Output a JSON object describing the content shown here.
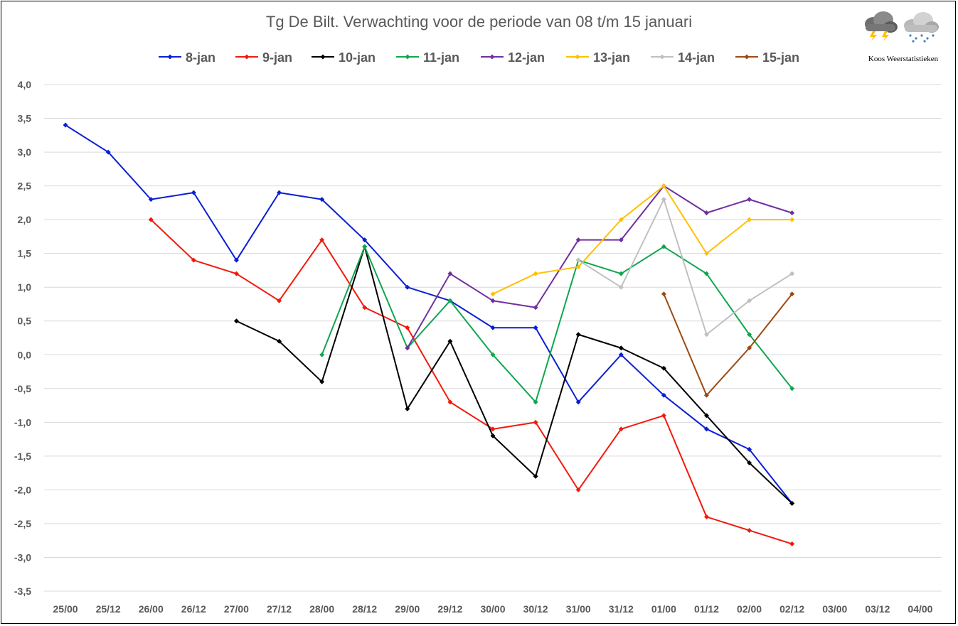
{
  "chart_data": {
    "type": "line",
    "title": "Tg De Bilt. Verwachting voor de periode van 08 t/m 15 januari",
    "xlabel": "",
    "ylabel": "",
    "ylim": [
      -3.5,
      4.0
    ],
    "y_ticks": [
      "4,0",
      "3,5",
      "3,0",
      "2,5",
      "2,0",
      "1,5",
      "1,0",
      "0,5",
      "0,0",
      "-0,5",
      "-1,0",
      "-1,5",
      "-2,0",
      "-2,5",
      "-3,0",
      "-3,5"
    ],
    "y_tick_values": [
      4.0,
      3.5,
      3.0,
      2.5,
      2.0,
      1.5,
      1.0,
      0.5,
      0.0,
      -0.5,
      -1.0,
      -1.5,
      -2.0,
      -2.5,
      -3.0,
      -3.5
    ],
    "categories": [
      "25/00",
      "25/12",
      "26/00",
      "26/12",
      "27/00",
      "27/12",
      "28/00",
      "28/12",
      "29/00",
      "29/12",
      "30/00",
      "30/12",
      "31/00",
      "31/12",
      "01/00",
      "01/12",
      "02/00",
      "02/12",
      "03/00",
      "03/12",
      "04/00"
    ],
    "grid": true,
    "legend_position": "top",
    "series": [
      {
        "name": "8-jan",
        "color": "#0a1fd4",
        "values": [
          3.4,
          3.0,
          2.3,
          2.4,
          1.4,
          2.4,
          2.3,
          1.7,
          1.0,
          0.8,
          0.4,
          0.4,
          -0.7,
          0.0,
          -0.6,
          -1.1,
          -1.4,
          -2.2,
          null,
          null,
          null
        ]
      },
      {
        "name": "9-jan",
        "color": "#f21a0a",
        "values": [
          null,
          null,
          2.0,
          1.4,
          1.2,
          0.8,
          1.7,
          0.7,
          0.4,
          -0.7,
          -1.1,
          -1.0,
          -2.0,
          -1.1,
          -0.9,
          -2.4,
          -2.6,
          -2.8,
          null,
          null,
          null
        ]
      },
      {
        "name": "10-jan",
        "color": "#000000",
        "values": [
          null,
          null,
          null,
          null,
          0.5,
          0.2,
          -0.4,
          1.6,
          -0.8,
          0.2,
          -1.2,
          -1.8,
          0.3,
          0.1,
          -0.2,
          -0.9,
          -1.6,
          -2.2,
          null,
          null,
          null
        ]
      },
      {
        "name": "11-jan",
        "color": "#10a650",
        "values": [
          null,
          null,
          null,
          null,
          null,
          null,
          0.0,
          1.6,
          0.1,
          0.8,
          0.0,
          -0.7,
          1.4,
          1.2,
          1.6,
          1.2,
          0.3,
          -0.5,
          null,
          null,
          null
        ]
      },
      {
        "name": "12-jan",
        "color": "#7030a0",
        "values": [
          null,
          null,
          null,
          null,
          null,
          null,
          null,
          null,
          0.1,
          1.2,
          0.8,
          0.7,
          1.7,
          1.7,
          2.5,
          2.1,
          2.3,
          2.1,
          null,
          null,
          null
        ]
      },
      {
        "name": "13-jan",
        "color": "#ffc000",
        "values": [
          null,
          null,
          null,
          null,
          null,
          null,
          null,
          null,
          null,
          null,
          0.9,
          1.2,
          1.3,
          2.0,
          2.5,
          1.5,
          2.0,
          2.0,
          null,
          null,
          null
        ]
      },
      {
        "name": "14-jan",
        "color": "#c0c0c0",
        "values": [
          null,
          null,
          null,
          null,
          null,
          null,
          null,
          null,
          null,
          null,
          null,
          null,
          1.4,
          1.0,
          2.3,
          0.3,
          0.8,
          1.2,
          null,
          null,
          null
        ]
      },
      {
        "name": "15-jan",
        "color": "#9c4a12",
        "values": [
          null,
          null,
          null,
          null,
          null,
          null,
          null,
          null,
          null,
          null,
          null,
          null,
          null,
          null,
          0.9,
          -0.6,
          0.1,
          0.9,
          null,
          null,
          null
        ]
      }
    ]
  },
  "logo": {
    "caption": "Koos Weerstatistieken",
    "icons": [
      "thunderstorm-cloud-icon",
      "snow-cloud-icon"
    ]
  }
}
